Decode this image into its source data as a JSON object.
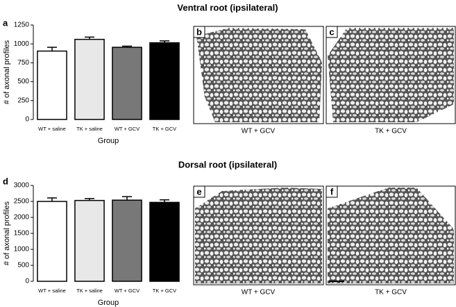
{
  "chart_data": [
    {
      "type": "bar",
      "title": "Ventral root (ipsilateral)",
      "panel_label": "a",
      "xlabel": "Group",
      "ylabel": "# of axonal profiles",
      "categories": [
        "WT + saline",
        "TK + saline",
        "WT + GCV",
        "TK + GCV"
      ],
      "values": [
        905,
        1060,
        955,
        1015
      ],
      "errors": [
        50,
        30,
        15,
        25
      ],
      "colors": [
        "#ffffff",
        "#e8e8e8",
        "#787878",
        "#000000"
      ],
      "ylim": [
        0,
        1250
      ],
      "yticks": [
        0,
        250,
        500,
        750,
        1000,
        1250
      ]
    },
    {
      "type": "bar",
      "title": "Dorsal root (ipsilateral)",
      "panel_label": "d",
      "xlabel": "Group",
      "ylabel": "# of axonal profiles",
      "categories": [
        "WT + saline",
        "TK + saline",
        "WT + GCV",
        "TK + GCV"
      ],
      "values": [
        2500,
        2530,
        2540,
        2470
      ],
      "errors": [
        110,
        60,
        110,
        80
      ],
      "colors": [
        "#ffffff",
        "#e8e8e8",
        "#787878",
        "#000000"
      ],
      "ylim": [
        0,
        3000
      ],
      "yticks": [
        0,
        500,
        1000,
        1500,
        2000,
        2500,
        3000
      ]
    }
  ],
  "images": [
    {
      "label": "b",
      "caption": "WT + GCV"
    },
    {
      "label": "c",
      "caption": "TK + GCV"
    },
    {
      "label": "e",
      "caption": "WT + GCV"
    },
    {
      "label": "f",
      "caption": "TK + GCV"
    }
  ]
}
